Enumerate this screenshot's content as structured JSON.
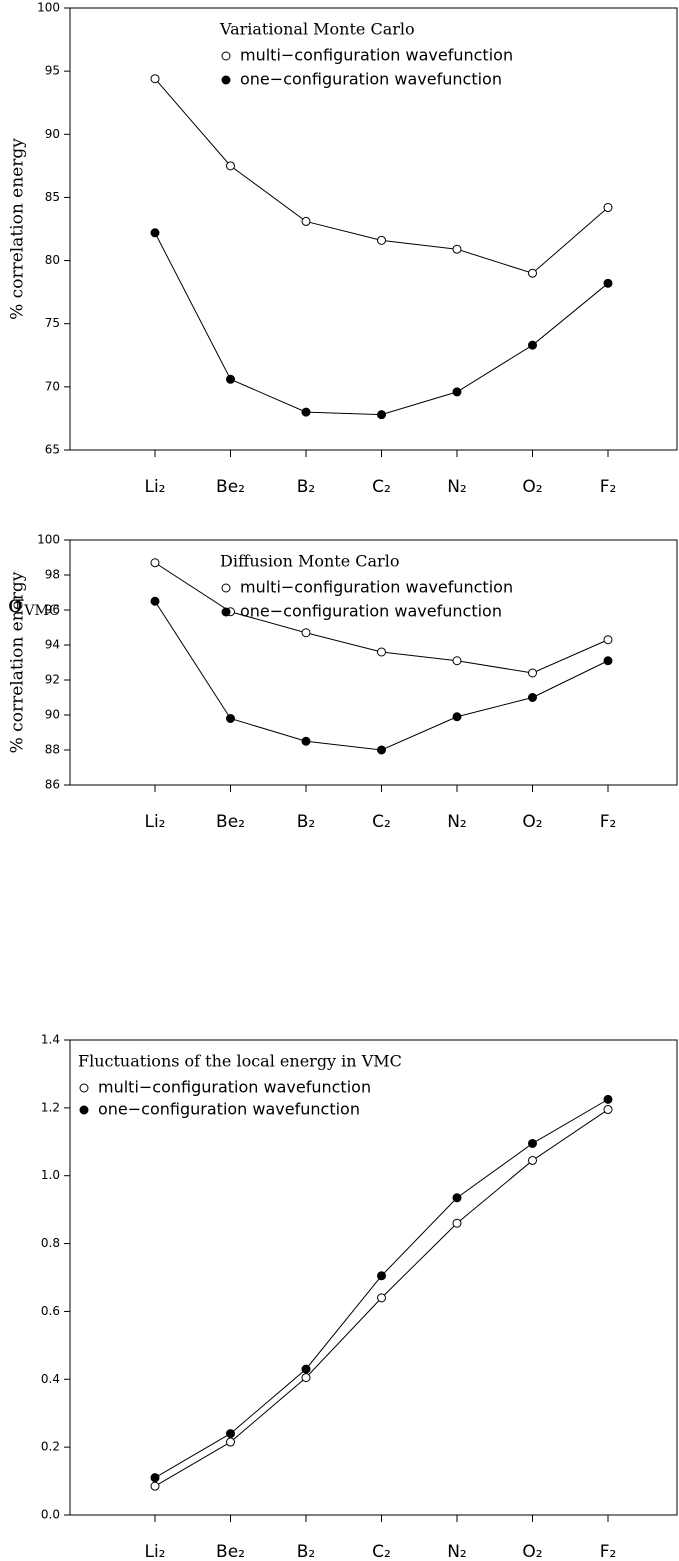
{
  "chart_data": [
    {
      "type": "line",
      "title": "Variational Monte Carlo",
      "ylabel": "% correlation energy",
      "legend": "upper center",
      "categories": [
        "Li₂",
        "Be₂",
        "B₂",
        "C₂",
        "N₂",
        "O₂",
        "F₂"
      ],
      "series": [
        {
          "name": "multi−configuration wavefunction",
          "color": "#000000",
          "marker": "open",
          "values": [
            94.4,
            87.5,
            83.1,
            81.6,
            80.9,
            79.0,
            84.2
          ]
        },
        {
          "name": "one−configuration wavefunction",
          "color": "#000000",
          "marker": "filled",
          "values": [
            82.2,
            70.6,
            68.0,
            67.8,
            69.6,
            73.3,
            78.2
          ]
        }
      ],
      "ylim": [
        65,
        100
      ],
      "yticks": [
        65,
        70,
        75,
        80,
        85,
        90,
        95,
        100
      ]
    },
    {
      "type": "line",
      "title": "Diffusion Monte Carlo",
      "ylabel": "% correlation energy",
      "legend": "upper center",
      "categories": [
        "Li₂",
        "Be₂",
        "B₂",
        "C₂",
        "N₂",
        "O₂",
        "F₂"
      ],
      "series": [
        {
          "name": "multi−configuration wavefunction",
          "color": "#000000",
          "marker": "open",
          "values": [
            98.7,
            95.9,
            94.7,
            93.6,
            93.1,
            92.4,
            94.3
          ]
        },
        {
          "name": "one−configuration wavefunction",
          "color": "#000000",
          "marker": "filled",
          "values": [
            96.5,
            89.8,
            88.5,
            88.0,
            89.9,
            91.0,
            93.1
          ]
        }
      ],
      "ylim": [
        86,
        100
      ],
      "yticks": [
        86,
        88,
        90,
        92,
        94,
        96,
        98,
        100
      ]
    },
    {
      "type": "line",
      "title": "Fluctuations of the local energy in VMC",
      "ylabel": "σVMC",
      "legend": "upper left",
      "categories": [
        "Li₂",
        "Be₂",
        "B₂",
        "C₂",
        "N₂",
        "O₂",
        "F₂"
      ],
      "series": [
        {
          "name": "multi−configuration wavefunction",
          "color": "#000000",
          "marker": "open",
          "values": [
            0.085,
            0.215,
            0.405,
            0.64,
            0.86,
            1.045,
            1.195
          ]
        },
        {
          "name": "one−configuration wavefunction",
          "color": "#000000",
          "marker": "filled",
          "values": [
            0.11,
            0.24,
            0.43,
            0.705,
            0.935,
            1.095,
            1.225
          ]
        }
      ],
      "ylim": [
        0,
        1.4
      ],
      "yticks": [
        {
          "value": 0,
          "label": "0.0"
        },
        0.2,
        0.4,
        0.6,
        0.8,
        {
          "value": 1,
          "label": "1.0"
        },
        1.2,
        1.4
      ]
    }
  ]
}
